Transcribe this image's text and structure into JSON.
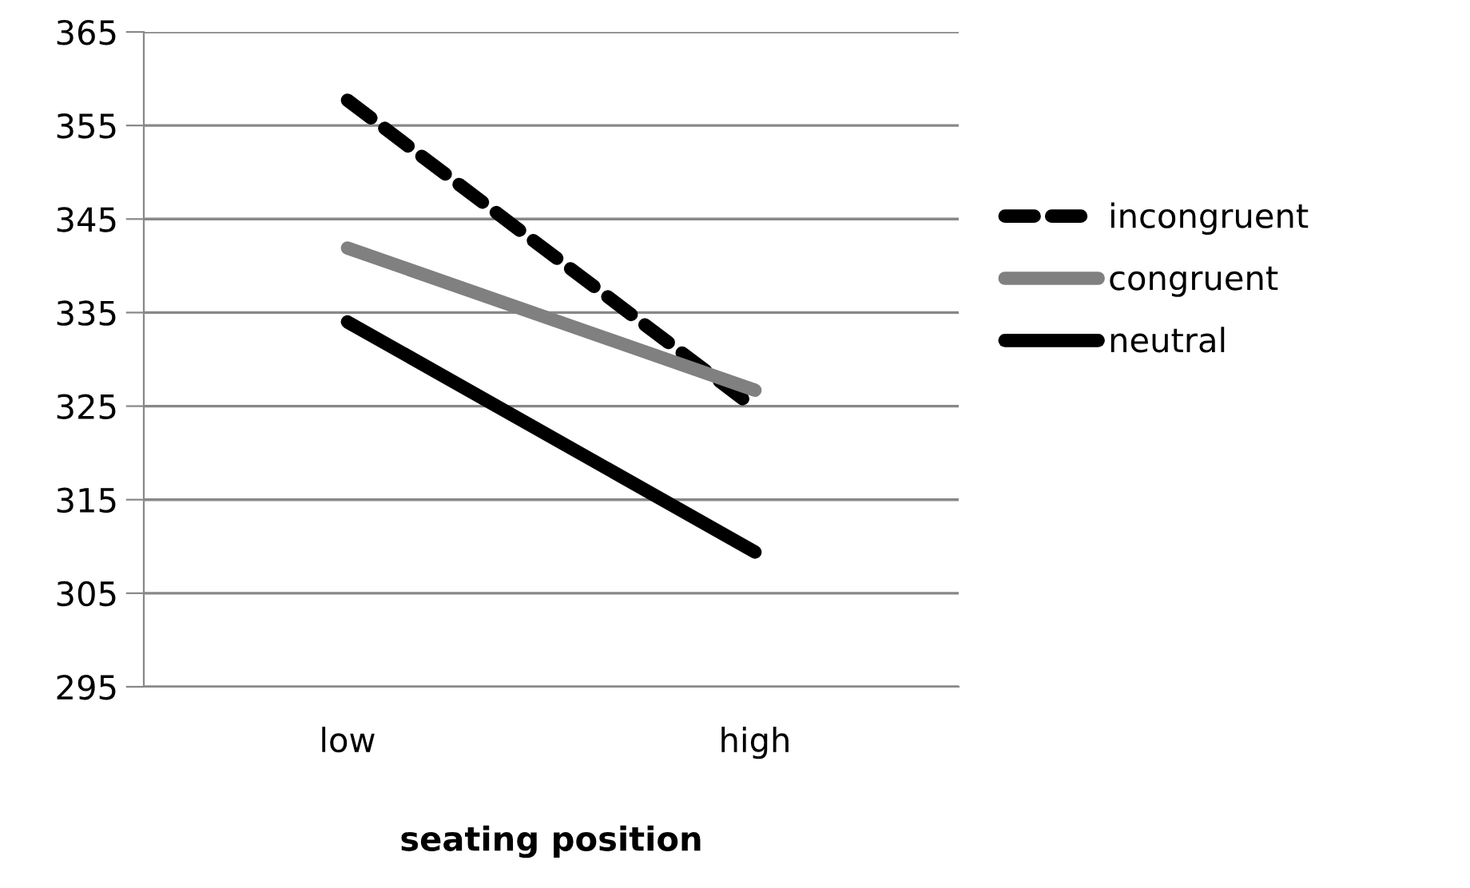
{
  "chart_data": {
    "type": "line",
    "xlabel": "seating position",
    "categories": [
      "low",
      "high"
    ],
    "series": [
      {
        "name": "incongruent",
        "color": "#000000",
        "line_style": "dashed",
        "values": [
          357.7,
          324.8
        ]
      },
      {
        "name": "congruent",
        "color": "#808080",
        "line_style": "solid",
        "values": [
          341.9,
          326.7
        ]
      },
      {
        "name": "neutral",
        "color": "#000000",
        "line_style": "solid",
        "values": [
          334.0,
          309.4
        ]
      }
    ],
    "ylim": [
      295,
      365
    ],
    "yticks": [
      295,
      305,
      315,
      325,
      335,
      345,
      355,
      365
    ],
    "grid": "y",
    "legend": "right",
    "marker": "none"
  }
}
